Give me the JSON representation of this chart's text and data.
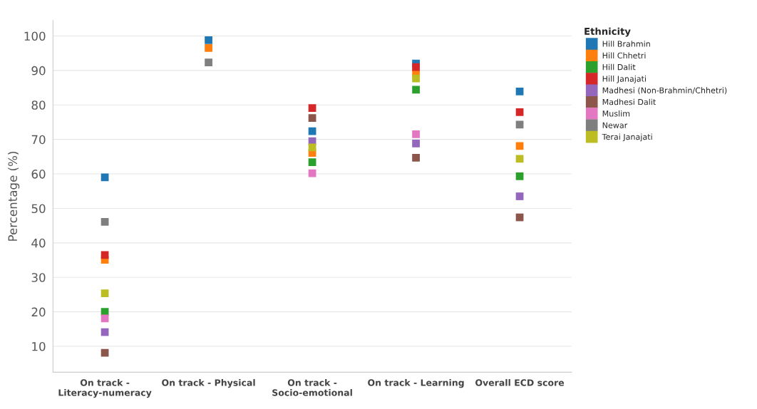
{
  "chart_data": {
    "type": "scatter",
    "ylabel": "Percentage (%)",
    "legend_title": "Ethnicity",
    "categories": [
      "On track - Literacy-numeracy",
      "On track - Physical",
      "On track - Socio-emotional",
      "On track - Learning",
      "Overall ECD score"
    ],
    "series": [
      {
        "name": "Hill Brahmin",
        "color": "#1f77b4",
        "values": [
          59.0,
          98.8,
          72.4,
          92.0,
          83.9
        ]
      },
      {
        "name": "Hill Chhetri",
        "color": "#ff7f0e",
        "values": [
          35.1,
          96.5,
          66.1,
          89.3,
          68.1
        ]
      },
      {
        "name": "Hill Dalit",
        "color": "#2ca02c",
        "values": [
          20.0,
          null,
          63.4,
          84.4,
          59.3
        ]
      },
      {
        "name": "Hill Janajati",
        "color": "#d62728",
        "values": [
          36.5,
          null,
          79.1,
          91.0,
          77.9
        ]
      },
      {
        "name": "Madhesi (Non-Brahmin/Chhetri)",
        "color": "#9467bd",
        "values": [
          14.1,
          null,
          69.5,
          68.8,
          53.5
        ]
      },
      {
        "name": "Madhesi Dalit",
        "color": "#8c564b",
        "values": [
          8.1,
          null,
          76.2,
          64.7,
          47.4
        ]
      },
      {
        "name": "Muslim",
        "color": "#e377c2",
        "values": [
          18.1,
          null,
          60.2,
          71.5,
          null
        ]
      },
      {
        "name": "Newar",
        "color": "#7f7f7f",
        "values": [
          46.1,
          92.3,
          null,
          null,
          74.3
        ]
      },
      {
        "name": "Terai Janajati",
        "color": "#bcbd22",
        "values": [
          25.4,
          null,
          67.7,
          87.7,
          64.4
        ]
      }
    ],
    "ylim": [
      2.5,
      104.5
    ],
    "yticks": [
      10,
      20,
      30,
      40,
      50,
      60,
      70,
      80,
      90,
      100
    ],
    "grid": "y",
    "legend": "top right",
    "marker": "square"
  }
}
